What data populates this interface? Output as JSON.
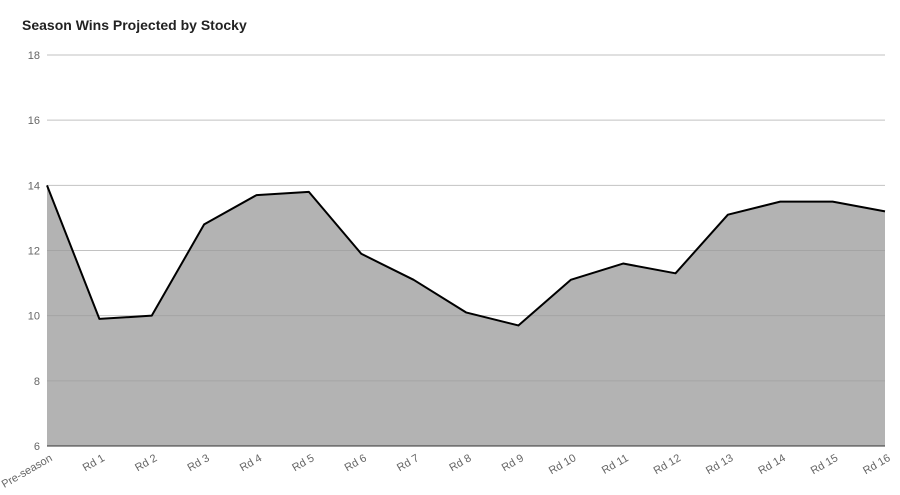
{
  "chart_data": {
    "type": "area",
    "title": "Season Wins Projected by Stocky",
    "categories": [
      "Pre-season",
      "Rd 1",
      "Rd 2",
      "Rd 3",
      "Rd 4",
      "Rd 5",
      "Rd 6",
      "Rd 7",
      "Rd 8",
      "Rd 9",
      "Rd 10",
      "Rd 11",
      "Rd 12",
      "Rd 13",
      "Rd 14",
      "Rd 15",
      "Rd 16"
    ],
    "series": [
      {
        "color": "#b3b3b3",
        "line_color": "#000000",
        "values": [
          14,
          9.9,
          10,
          12.8,
          13.7,
          13.8,
          11.9,
          11.1,
          10.1,
          9.7,
          11.1,
          11.6,
          11.3,
          13.1,
          13.5,
          13.5,
          13.2
        ]
      }
    ],
    "ylim": [
      6,
      18
    ],
    "yticks": [
      6,
      8,
      10,
      12,
      14,
      16,
      18
    ],
    "grid": true
  }
}
